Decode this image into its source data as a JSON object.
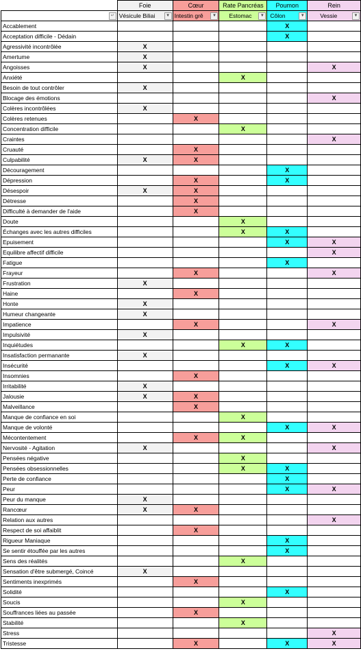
{
  "header": {
    "organs": [
      "Foie",
      "Cœur",
      "Rate Pancréas",
      "Poumon",
      "Rein"
    ],
    "sub": [
      "Vésicule Biliai",
      "Intestin grê",
      "Estomac",
      "Côlon",
      "Vessie"
    ],
    "dropdown_glyph": "▼",
    "corner_glyph": "↵"
  },
  "colors": {
    "foie": "#f2f2f2",
    "coeur": "#f79e9a",
    "rate": "#ccff99",
    "poumon": "#33ffff",
    "rein": "#f3d4ef"
  },
  "mark": "X",
  "rows": [
    {
      "label": "Accablement",
      "marks": [
        0,
        0,
        0,
        1,
        0
      ]
    },
    {
      "label": "Acceptation difficile - Dédain",
      "marks": [
        0,
        0,
        0,
        1,
        0
      ]
    },
    {
      "label": "Agressivité incontrôlée",
      "marks": [
        1,
        0,
        0,
        0,
        0
      ]
    },
    {
      "label": "Amertume",
      "marks": [
        1,
        0,
        0,
        0,
        0
      ]
    },
    {
      "label": "Angoisses",
      "marks": [
        1,
        0,
        0,
        0,
        1
      ]
    },
    {
      "label": "Anxiété",
      "marks": [
        0,
        0,
        1,
        0,
        0
      ]
    },
    {
      "label": "Besoin de tout contrôler",
      "marks": [
        1,
        0,
        0,
        0,
        0
      ]
    },
    {
      "label": "Blocage des émotions",
      "marks": [
        0,
        0,
        0,
        0,
        1
      ]
    },
    {
      "label": "Colères incontrôlées",
      "marks": [
        1,
        0,
        0,
        0,
        0
      ]
    },
    {
      "label": "Colères retenues",
      "marks": [
        0,
        1,
        0,
        0,
        0
      ]
    },
    {
      "label": "Concentration difficile",
      "marks": [
        0,
        0,
        1,
        0,
        0
      ]
    },
    {
      "label": "Craintes",
      "marks": [
        0,
        0,
        0,
        0,
        1
      ]
    },
    {
      "label": "Cruauté",
      "marks": [
        0,
        1,
        0,
        0,
        0
      ]
    },
    {
      "label": "Culpabilité",
      "marks": [
        1,
        1,
        0,
        0,
        0
      ]
    },
    {
      "label": "Découragement",
      "marks": [
        0,
        0,
        0,
        1,
        0
      ]
    },
    {
      "label": "Dépression",
      "marks": [
        0,
        1,
        0,
        1,
        0
      ]
    },
    {
      "label": "Désespoir",
      "marks": [
        1,
        1,
        0,
        0,
        0
      ]
    },
    {
      "label": "Détresse",
      "marks": [
        0,
        1,
        0,
        0,
        0
      ]
    },
    {
      "label": "Difficulté à demander de l'aide",
      "marks": [
        0,
        1,
        0,
        0,
        0
      ]
    },
    {
      "label": "Doute",
      "marks": [
        0,
        0,
        1,
        0,
        0
      ]
    },
    {
      "label": "Échanges avec les autres difficiles",
      "marks": [
        0,
        0,
        1,
        1,
        0
      ]
    },
    {
      "label": "Epuisement",
      "marks": [
        0,
        0,
        0,
        1,
        1
      ]
    },
    {
      "label": "Equilibre affectif difficile",
      "marks": [
        0,
        0,
        0,
        0,
        1
      ]
    },
    {
      "label": "Fatigue",
      "marks": [
        0,
        0,
        0,
        1,
        0
      ]
    },
    {
      "label": "Frayeur",
      "marks": [
        0,
        1,
        0,
        0,
        1
      ]
    },
    {
      "label": "Frustration",
      "marks": [
        1,
        0,
        0,
        0,
        0
      ]
    },
    {
      "label": "Haine",
      "marks": [
        0,
        1,
        0,
        0,
        0
      ]
    },
    {
      "label": "Honte",
      "marks": [
        1,
        0,
        0,
        0,
        0
      ]
    },
    {
      "label": "Humeur changeante",
      "marks": [
        1,
        0,
        0,
        0,
        0
      ]
    },
    {
      "label": "Impatience",
      "marks": [
        0,
        1,
        0,
        0,
        1
      ]
    },
    {
      "label": "Impulsivité",
      "marks": [
        1,
        0,
        0,
        0,
        0
      ]
    },
    {
      "label": "Inquiétudes",
      "marks": [
        0,
        0,
        1,
        1,
        0
      ]
    },
    {
      "label": "Insatisfaction permanante",
      "marks": [
        1,
        0,
        0,
        0,
        0
      ]
    },
    {
      "label": "Insécurité",
      "marks": [
        0,
        0,
        0,
        1,
        1
      ]
    },
    {
      "label": "Insomnies",
      "marks": [
        0,
        1,
        0,
        0,
        0
      ]
    },
    {
      "label": "Irritabilité",
      "marks": [
        1,
        0,
        0,
        0,
        0
      ]
    },
    {
      "label": "Jalousie",
      "marks": [
        1,
        1,
        0,
        0,
        0
      ]
    },
    {
      "label": "Malveillance",
      "marks": [
        0,
        1,
        0,
        0,
        0
      ]
    },
    {
      "label": "Manque de confiance en soi",
      "marks": [
        0,
        0,
        1,
        0,
        0
      ]
    },
    {
      "label": "Manque de volonté",
      "marks": [
        0,
        0,
        0,
        1,
        1
      ]
    },
    {
      "label": "Mécontentement",
      "marks": [
        0,
        1,
        1,
        0,
        0
      ]
    },
    {
      "label": "Nervosité - Agitation",
      "marks": [
        1,
        0,
        0,
        0,
        1
      ]
    },
    {
      "label": "Pensées négative",
      "marks": [
        0,
        0,
        1,
        0,
        0
      ]
    },
    {
      "label": "Pensées obsessionnelles",
      "marks": [
        0,
        0,
        1,
        1,
        0
      ]
    },
    {
      "label": "Perte de confiance",
      "marks": [
        0,
        0,
        0,
        1,
        0
      ]
    },
    {
      "label": "Peur",
      "marks": [
        0,
        0,
        0,
        1,
        1
      ]
    },
    {
      "label": "Peur du manque",
      "marks": [
        1,
        0,
        0,
        0,
        0
      ]
    },
    {
      "label": "Rancœur",
      "marks": [
        1,
        1,
        0,
        0,
        0
      ]
    },
    {
      "label": "Relation aux autres",
      "marks": [
        0,
        0,
        0,
        0,
        1
      ]
    },
    {
      "label": "Respect de soi affaiblit",
      "marks": [
        0,
        1,
        0,
        0,
        0
      ]
    },
    {
      "label": "Rigueur Maniaque",
      "marks": [
        0,
        0,
        0,
        1,
        0
      ]
    },
    {
      "label": "Se sentir étouffée par les autres",
      "marks": [
        0,
        0,
        0,
        1,
        0
      ]
    },
    {
      "label": "Sens des réalités",
      "marks": [
        0,
        0,
        1,
        0,
        0
      ]
    },
    {
      "label": "Sensation d'être submergé, Coincé",
      "marks": [
        1,
        0,
        0,
        0,
        0
      ]
    },
    {
      "label": "Sentiments inexprimés",
      "marks": [
        0,
        1,
        0,
        0,
        0
      ]
    },
    {
      "label": "Solidité",
      "marks": [
        0,
        0,
        0,
        1,
        0
      ]
    },
    {
      "label": "Soucis",
      "marks": [
        0,
        0,
        1,
        0,
        0
      ]
    },
    {
      "label": "Souffrances liées au passée",
      "marks": [
        0,
        1,
        0,
        0,
        0
      ]
    },
    {
      "label": "Stabilité",
      "marks": [
        0,
        0,
        1,
        0,
        0
      ]
    },
    {
      "label": "Stress",
      "marks": [
        0,
        0,
        0,
        0,
        1
      ]
    },
    {
      "label": "Tristesse",
      "marks": [
        0,
        1,
        0,
        1,
        1
      ]
    }
  ]
}
